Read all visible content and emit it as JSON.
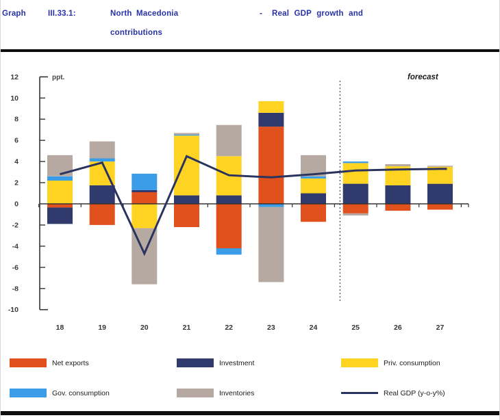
{
  "header": {
    "label": "Graph",
    "number": "III.33.1:",
    "title_main": "North Macedonia",
    "separator": "-",
    "title_rest": "Real GDP growth and",
    "title_line2": "contributions"
  },
  "chart_data": {
    "type": "bar",
    "subtype": "stacked-contributions-with-line",
    "unit_label": "ppt.",
    "forecast_label": "forecast",
    "forecast_start_category": "25",
    "categories": [
      "18",
      "19",
      "20",
      "21",
      "22",
      "23",
      "24",
      "25",
      "26",
      "27"
    ],
    "ylim": [
      -10,
      12
    ],
    "ytick_step": 2,
    "grid": false,
    "legend_position": "bottom",
    "series": [
      {
        "name": "Net exports",
        "color": "#E1511E",
        "values": [
          -0.35,
          -2.0,
          1.1,
          -2.2,
          -4.2,
          7.3,
          -1.7,
          -0.9,
          -0.65,
          -0.55
        ]
      },
      {
        "name": "Investment",
        "color": "#303A6D",
        "values": [
          -1.55,
          1.75,
          0.2,
          0.8,
          0.8,
          1.3,
          1.0,
          1.9,
          1.75,
          1.9
        ]
      },
      {
        "name": "Priv. consumption",
        "color": "#FFD322",
        "values": [
          2.2,
          2.25,
          -2.3,
          5.65,
          3.7,
          1.1,
          1.4,
          1.95,
          1.8,
          1.6
        ]
      },
      {
        "name": "Gov. consumption",
        "color": "#3B9DE8",
        "values": [
          0.4,
          0.3,
          1.55,
          0.1,
          -0.6,
          -0.3,
          0.2,
          0.15,
          0.0,
          0.0
        ]
      },
      {
        "name": "Inventories",
        "color": "#B5A9A1",
        "values": [
          2.0,
          1.6,
          -5.3,
          0.15,
          2.95,
          -7.1,
          2.0,
          -0.2,
          0.2,
          0.1
        ]
      }
    ],
    "line_series": {
      "name": "Real GDP (y-o-y%)",
      "color": "#2B335F",
      "values": [
        2.8,
        3.9,
        -4.7,
        4.5,
        2.7,
        2.5,
        2.8,
        3.15,
        3.25,
        3.3
      ]
    }
  },
  "legend": {
    "items": [
      {
        "label": "Net exports",
        "color": "#E1511E",
        "type": "box"
      },
      {
        "label": "Investment",
        "color": "#303A6D",
        "type": "box"
      },
      {
        "label": "Priv. consumption",
        "color": "#FFD322",
        "type": "box"
      },
      {
        "label": "Gov. consumption",
        "color": "#3B9DE8",
        "type": "box"
      },
      {
        "label": "Inventories",
        "color": "#B5A9A1",
        "type": "box"
      },
      {
        "label": "Real GDP (y-o-y%)",
        "color": "#2B335F",
        "type": "line"
      }
    ]
  }
}
